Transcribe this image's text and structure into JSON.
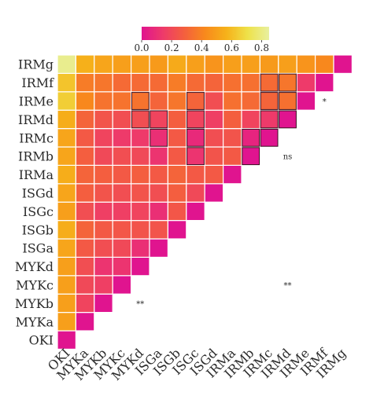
{
  "chart_data": {
    "type": "heatmap",
    "title": "",
    "xlabel": "",
    "ylabel": "",
    "legend": {
      "position": "top",
      "ticks": [
        "0.0",
        "0.2",
        "0.4",
        "0.6",
        "0.8"
      ],
      "range": [
        0,
        0.85
      ],
      "colors": [
        "#e0148f",
        "#ee3a6a",
        "#f45f3e",
        "#f88a1c",
        "#f6b21a",
        "#eee24a",
        "#e8f0a0"
      ]
    },
    "x_categories": [
      "OKI",
      "MYKa",
      "MYKb",
      "MYKc",
      "MYKd",
      "ISGa",
      "ISGb",
      "ISGc",
      "ISGd",
      "IRMa",
      "IRMb",
      "IRMc",
      "IRMd",
      "IRMe",
      "IRMf",
      "IRMg"
    ],
    "y_categories": [
      "IRMg",
      "IRMf",
      "IRMe",
      "IRMd",
      "IRMc",
      "IRMb",
      "IRMa",
      "ISGd",
      "ISGc",
      "ISGb",
      "ISGa",
      "MYKd",
      "MYKc",
      "MYKb",
      "MYKa",
      "OKI"
    ],
    "matrix": [
      [
        0.0
      ],
      [
        0.5,
        0.0
      ],
      [
        0.5,
        0.18,
        0.0
      ],
      [
        0.5,
        0.2,
        0.16,
        0.0
      ],
      [
        0.5,
        0.22,
        0.12,
        0.12,
        0.0
      ],
      [
        0.52,
        0.26,
        0.22,
        0.2,
        0.1,
        0.0
      ],
      [
        0.55,
        0.3,
        0.26,
        0.25,
        0.24,
        0.24,
        0.0
      ],
      [
        0.5,
        0.22,
        0.16,
        0.16,
        0.18,
        0.1,
        0.25,
        0.0
      ],
      [
        0.52,
        0.28,
        0.24,
        0.22,
        0.24,
        0.22,
        0.28,
        0.2,
        0.0
      ],
      [
        0.55,
        0.3,
        0.28,
        0.26,
        0.28,
        0.26,
        0.3,
        0.26,
        0.26,
        0.0
      ],
      [
        0.52,
        0.28,
        0.2,
        0.22,
        0.2,
        0.12,
        0.26,
        0.12,
        0.24,
        0.26,
        0.0
      ],
      [
        0.52,
        0.26,
        0.18,
        0.14,
        0.14,
        0.1,
        0.26,
        0.08,
        0.22,
        0.24,
        0.06,
        0.0
      ],
      [
        0.55,
        0.3,
        0.24,
        0.22,
        0.22,
        0.18,
        0.28,
        0.18,
        0.16,
        0.28,
        0.18,
        0.14,
        0.0
      ],
      [
        0.65,
        0.42,
        0.35,
        0.35,
        0.35,
        0.3,
        0.36,
        0.3,
        0.22,
        0.34,
        0.32,
        0.3,
        0.34,
        0.0
      ],
      [
        0.62,
        0.38,
        0.36,
        0.32,
        0.32,
        0.32,
        0.38,
        0.32,
        0.3,
        0.34,
        0.34,
        0.32,
        0.36,
        0.14,
        0.0
      ],
      [
        0.82,
        0.56,
        0.52,
        0.5,
        0.5,
        0.48,
        0.54,
        0.5,
        0.46,
        0.5,
        0.5,
        0.48,
        0.5,
        0.46,
        0.42,
        0.0
      ]
    ],
    "outlined": [
      [
        12,
        4
      ],
      [
        13,
        4
      ],
      [
        12,
        5
      ],
      [
        11,
        5
      ],
      [
        10,
        7
      ],
      [
        11,
        7
      ],
      [
        12,
        7
      ],
      [
        13,
        7
      ],
      [
        10,
        10
      ],
      [
        11,
        10
      ],
      [
        10,
        11
      ],
      [
        11,
        11
      ],
      [
        14,
        11
      ],
      [
        13,
        11
      ],
      [
        12,
        11
      ],
      [
        7,
        11
      ],
      [
        8,
        11
      ],
      [
        9,
        11
      ],
      [
        7,
        11
      ],
      [
        14,
        12
      ],
      [
        13,
        12
      ],
      [
        12,
        12
      ],
      [
        6,
        13
      ],
      [
        7,
        13
      ],
      [
        8,
        13
      ],
      [
        9,
        13
      ],
      [
        6,
        14
      ],
      [
        2,
        14
      ],
      [
        7,
        11
      ],
      [
        5,
        11
      ]
    ],
    "annotations": [
      {
        "row": "MYKb",
        "col": "MYKd",
        "text": "**"
      },
      {
        "row": "MYKc",
        "col": "IRMd",
        "text": "**"
      },
      {
        "row": "IRMb",
        "col": "IRMd",
        "text": "ns"
      },
      {
        "row": "IRMe",
        "col": "IRMf",
        "text": "*"
      }
    ]
  }
}
